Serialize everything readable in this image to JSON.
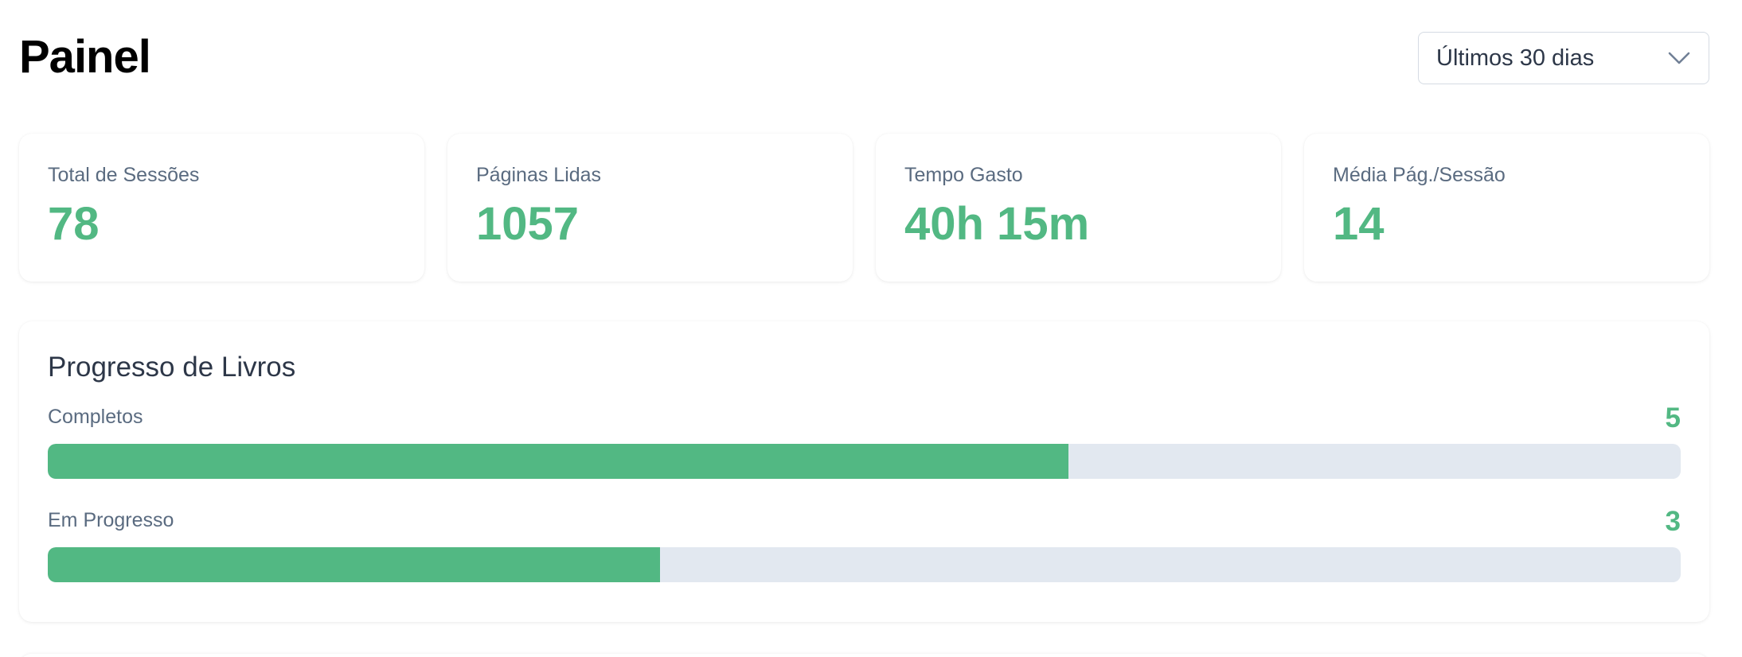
{
  "header": {
    "title": "Painel",
    "range_select": {
      "selected": "Últimos 30 dias",
      "icon": "chevron-down-icon"
    }
  },
  "stats": [
    {
      "label": "Total de Sessões",
      "value": "78"
    },
    {
      "label": "Páginas Lidas",
      "value": "1057"
    },
    {
      "label": "Tempo Gasto",
      "value": "40h 15m"
    },
    {
      "label": "Média Pág./Sessão",
      "value": "14"
    }
  ],
  "book_progress": {
    "title": "Progresso de Livros",
    "items": [
      {
        "label": "Completos",
        "count": "5",
        "fraction": 0.625
      },
      {
        "label": "Em Progresso",
        "count": "3",
        "fraction": 0.375
      }
    ]
  },
  "colors": {
    "accent": "#52b883",
    "track": "#e2e8f0",
    "muted_text": "#5a6b80",
    "heading_text": "#2d3748"
  }
}
